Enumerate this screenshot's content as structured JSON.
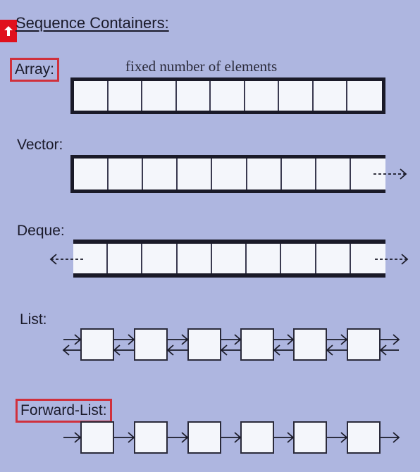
{
  "title": "Sequence Containers:",
  "array": {
    "label": "Array:",
    "note": "fixed number of elements",
    "cells": 9
  },
  "vector": {
    "label": "Vector:",
    "cells": 9
  },
  "deque": {
    "label": "Deque:",
    "cells": 9
  },
  "list": {
    "label": "List:",
    "nodes": 6
  },
  "forward_list": {
    "label": "Forward-List:",
    "nodes": 6
  },
  "colors": {
    "background": "#aeb6e0",
    "highlight": "#d0303c",
    "cell_fill": "#f4f6fb",
    "ink": "#1a1a28"
  },
  "icons": {
    "logo": "brand-logo-icon"
  }
}
